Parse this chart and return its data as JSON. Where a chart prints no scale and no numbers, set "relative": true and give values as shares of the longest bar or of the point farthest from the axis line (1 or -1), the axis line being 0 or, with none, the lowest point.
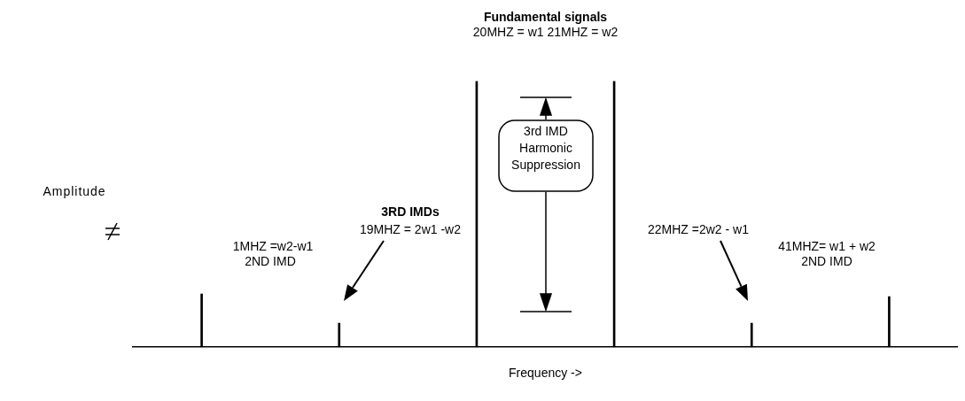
{
  "chart_data": {
    "type": "bar",
    "title": "Fundamental signals",
    "subtitle": "20MHZ = w1 21MHZ = w2",
    "xlabel": "Frequency ->",
    "relative": true,
    "tick_labels": false,
    "grid": false,
    "legend": false,
    "categories": [
      null,
      null,
      null,
      null,
      null,
      null
    ],
    "series": [
      {
        "color": "#000000",
        "values": [
          0.2,
          0.09,
          1,
          1,
          0.09,
          0.19
        ]
      }
    ],
    "annotations": [
      "3rd IMD Harmonic Suppression",
      "3RD IMDs",
      "22MHZ =2w2 - w1",
      "19MHZ = 2w1 -w2",
      "1MHZ =w2-w1",
      "2ND IMD",
      "41MHZ= w1 + w2",
      "2ND IMD",
      "Amplitude"
    ]
  }
}
